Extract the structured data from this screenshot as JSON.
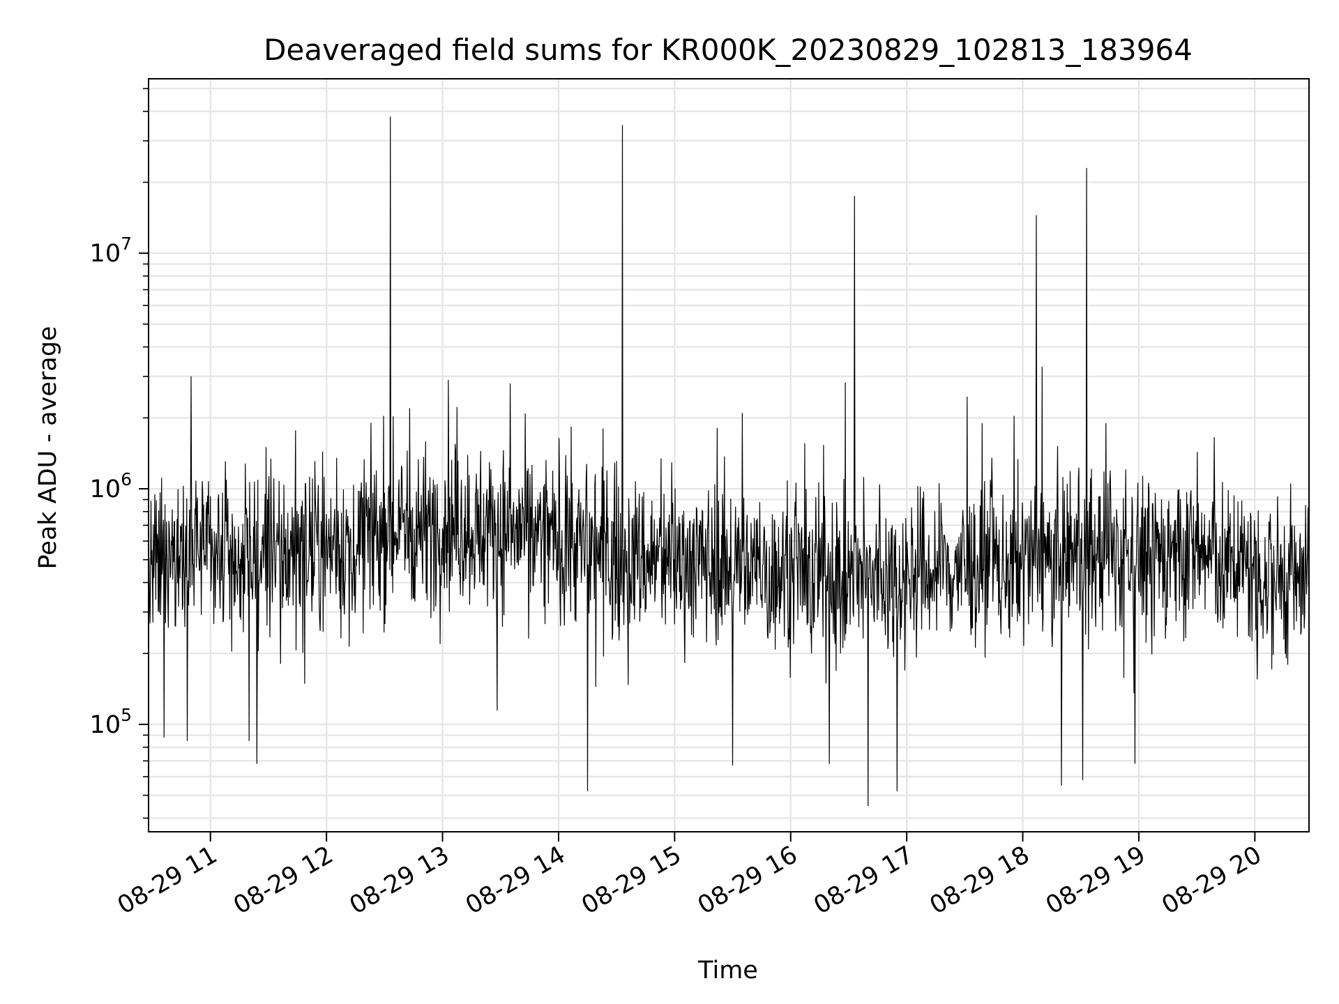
{
  "chart_data": {
    "type": "line",
    "title": "Deaveraged field sums for KR000K_20230829_102813_183964",
    "xlabel": "Time",
    "ylabel": "Peak ADU - average",
    "yscale": "log",
    "xlim": [
      "08-29 10:28",
      "08-29 20:28"
    ],
    "ylim": [
      35000,
      55000000
    ],
    "grid": true,
    "line_color": "#000000",
    "x_ticks": [
      "08-29 11",
      "08-29 12",
      "08-29 13",
      "08-29 14",
      "08-29 15",
      "08-29 16",
      "08-29 17",
      "08-29 18",
      "08-29 19",
      "08-29 20"
    ],
    "y_ticks": [
      {
        "value": 100000,
        "base": "10",
        "exp": "5"
      },
      {
        "value": 1000000,
        "base": "10",
        "exp": "6"
      },
      {
        "value": 10000000,
        "base": "10",
        "exp": "7"
      }
    ],
    "series": [
      {
        "baseline_profile": [
          {
            "x": "08-29 10:28",
            "y": 420000
          },
          {
            "x": "08-29 10:50",
            "y": 650000
          },
          {
            "x": "08-29 11:10",
            "y": 480000
          },
          {
            "x": "08-29 12:00",
            "y": 550000
          },
          {
            "x": "08-29 12:30",
            "y": 650000
          },
          {
            "x": "08-29 13:00",
            "y": 700000
          },
          {
            "x": "08-29 13:45",
            "y": 650000
          },
          {
            "x": "08-29 14:30",
            "y": 520000
          },
          {
            "x": "08-29 15:30",
            "y": 480000
          },
          {
            "x": "08-29 16:30",
            "y": 400000
          },
          {
            "x": "08-29 17:30",
            "y": 460000
          },
          {
            "x": "08-29 18:30",
            "y": 520000
          },
          {
            "x": "08-29 19:30",
            "y": 540000
          },
          {
            "x": "08-29 20:28",
            "y": 380000
          }
        ],
        "peaks": [
          {
            "x": "08-29 10:50",
            "y": 3000000
          },
          {
            "x": "08-29 12:33",
            "y": 38000000
          },
          {
            "x": "08-29 12:43",
            "y": 2200000
          },
          {
            "x": "08-29 13:03",
            "y": 2900000
          },
          {
            "x": "08-29 13:35",
            "y": 2800000
          },
          {
            "x": "08-29 14:33",
            "y": 35000000
          },
          {
            "x": "08-29 15:35",
            "y": 2100000
          },
          {
            "x": "08-29 16:33",
            "y": 17500000
          },
          {
            "x": "08-29 18:07",
            "y": 14500000
          },
          {
            "x": "08-29 18:10",
            "y": 3300000
          },
          {
            "x": "08-29 18:33",
            "y": 23000000
          },
          {
            "x": "08-29 18:43",
            "y": 1900000
          }
        ],
        "dips": [
          {
            "x": "08-29 10:36",
            "y": 88000
          },
          {
            "x": "08-29 10:48",
            "y": 85000
          },
          {
            "x": "08-29 11:20",
            "y": 85000
          },
          {
            "x": "08-29 11:24",
            "y": 68000
          },
          {
            "x": "08-29 14:15",
            "y": 52000
          },
          {
            "x": "08-29 15:30",
            "y": 67000
          },
          {
            "x": "08-29 16:20",
            "y": 68000
          },
          {
            "x": "08-29 16:40",
            "y": 45000
          },
          {
            "x": "08-29 16:55",
            "y": 52000
          },
          {
            "x": "08-29 18:20",
            "y": 55000
          },
          {
            "x": "08-29 18:31",
            "y": 58000
          },
          {
            "x": "08-29 18:58",
            "y": 68000
          }
        ]
      }
    ]
  }
}
